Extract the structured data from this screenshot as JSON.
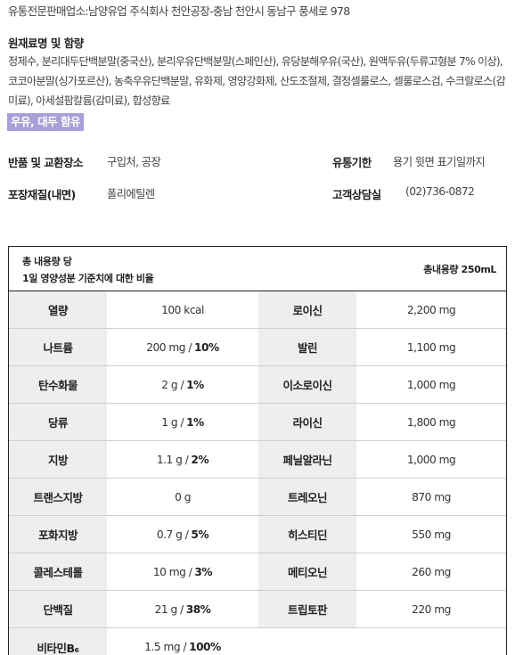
{
  "distributor": "유통전문판매업소:남양유업 주식회사 천안공장-충남 천안시 동남구 풍세로 978",
  "ingredients": {
    "heading": "원재료명 및 함량",
    "text": "정제수, 분리대두단백분말(중국산), 분리우유단백분말(스페인산), 유당분해우유(국산), 원액두유(두류고형분 7% 이상), 코코아분말(싱가포르산), 농축우유단백분말, 유화제, 영양강화제, 산도조절제, 결정셀룰로스, 셀룰로스검, 수크랄로스(감미료), 아세설팜칼륨(감미료), 합성향료",
    "allergen": "우유, 대두 함유"
  },
  "info": {
    "exchange_label": "반품 및 교환장소",
    "exchange_value": "구입처, 공장",
    "expiry_label": "유통기한",
    "expiry_value": "용기 윗면 표기일까지",
    "packaging_label": "포장재질(내면)",
    "packaging_value": "폴리에틸렌",
    "consult_label": "고객상담실",
    "consult_value": "(02)736-0872"
  },
  "nutrition": {
    "header_line1": "총 내용량 당",
    "header_line2": "1일 영양성분 기준치에 대한 비율",
    "header_right": "총내용량 250mL",
    "rows": [
      {
        "n1": "열량",
        "v1": "100 kcal",
        "p1": "",
        "n2": "로이신",
        "v2": "2,200 mg"
      },
      {
        "n1": "나트륨",
        "v1": "200 mg /",
        "p1": "10%",
        "n2": "발린",
        "v2": "1,100 mg"
      },
      {
        "n1": "탄수화물",
        "v1": "2 g /",
        "p1": "1%",
        "n2": "이소로이신",
        "v2": "1,000 mg"
      },
      {
        "n1": "당류",
        "v1": "1 g /",
        "p1": "1%",
        "n2": "라이신",
        "v2": "1,800 mg"
      },
      {
        "n1": "지방",
        "v1": "1.1 g /",
        "p1": "2%",
        "n2": "페닐알라닌",
        "v2": "1,000 mg"
      },
      {
        "n1": "트랜스지방",
        "v1": "0 g",
        "p1": "",
        "n2": "트레오닌",
        "v2": "870 mg"
      },
      {
        "n1": "포화지방",
        "v1": "0.7 g /",
        "p1": "5%",
        "n2": "히스티딘",
        "v2": "550 mg"
      },
      {
        "n1": "콜레스테롤",
        "v1": "10 mg /",
        "p1": "3%",
        "n2": "메티오닌",
        "v2": "260 mg"
      },
      {
        "n1": "단백질",
        "v1": "21 g /",
        "p1": "38%",
        "n2": "트립토판",
        "v2": "220 mg"
      },
      {
        "n1": "비타민B₆",
        "v1": "1.5 mg /",
        "p1": "100%",
        "n2": "",
        "v2": ""
      }
    ]
  }
}
